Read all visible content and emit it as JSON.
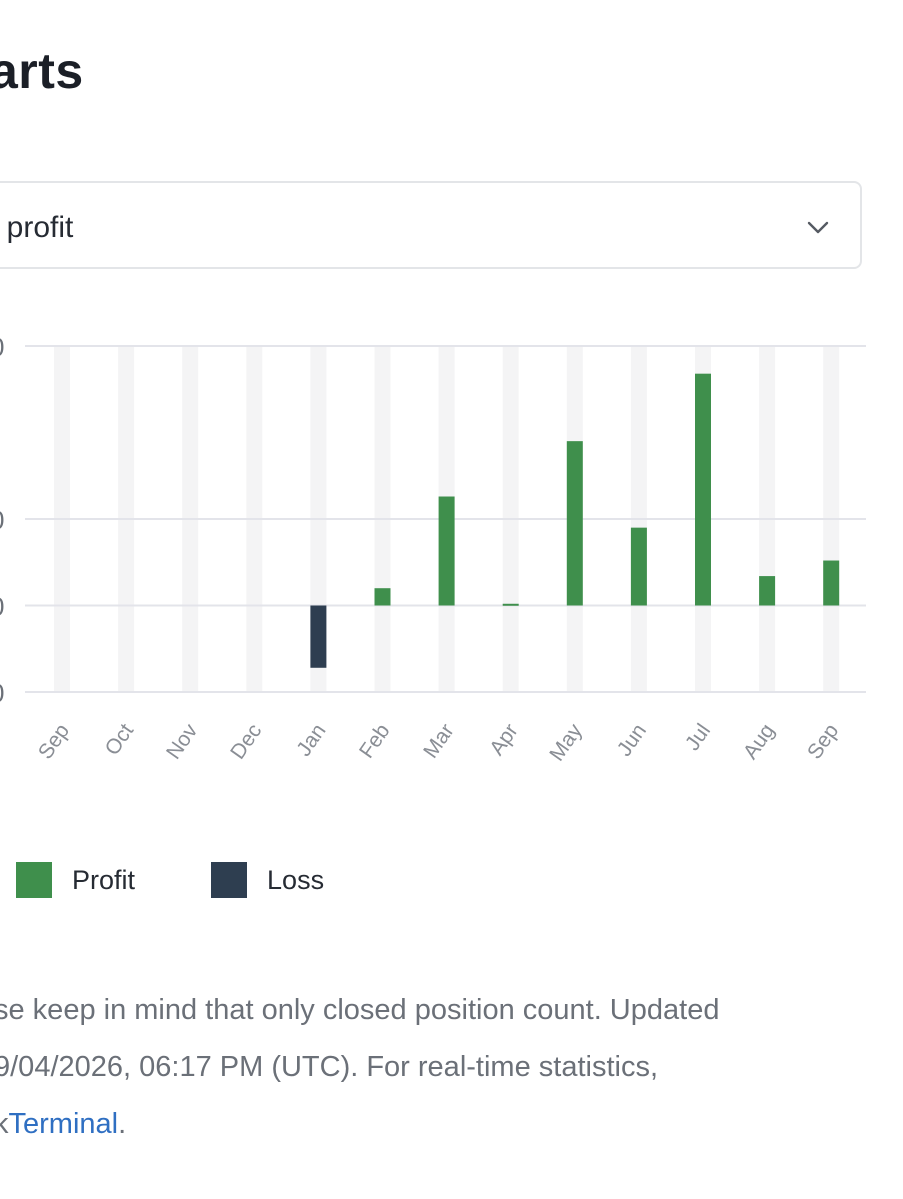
{
  "page": {
    "title": "arts"
  },
  "select": {
    "value": "t profit",
    "icon": "chevron-down-icon"
  },
  "chart_data": {
    "type": "bar",
    "categories": [
      "Sep",
      "Oct",
      "Nov",
      "Dec",
      "Jan",
      "Feb",
      "Mar",
      "Apr",
      "May",
      "Jun",
      "Jul",
      "Aug",
      "Sep"
    ],
    "series": [
      {
        "name": "Profit",
        "color": "#3f8f4c",
        "values": [
          0,
          0,
          0,
          0,
          0,
          10,
          63,
          1,
          95,
          45,
          134,
          17,
          26
        ]
      },
      {
        "name": "Loss",
        "color": "#2e3e50",
        "values": [
          0,
          0,
          0,
          0,
          -36,
          0,
          0,
          0,
          0,
          0,
          0,
          0,
          0
        ]
      }
    ],
    "ylim": [
      -50,
      150
    ],
    "gridlines": [
      -50,
      0,
      50,
      150
    ],
    "tick_labels": [
      "0",
      "0",
      "0",
      "0"
    ],
    "xlabel": "",
    "ylabel": "",
    "legend": "bottom-left"
  },
  "legend": {
    "items": [
      {
        "label": "Profit",
        "color": "#3f8f4c"
      },
      {
        "label": "Loss",
        "color": "#2e3e50"
      }
    ]
  },
  "note": {
    "line1": "se keep in mind that only closed position count. Updated",
    "line2": "9/04/2026, 06:17 PM (UTC). For real-time statistics,",
    "line3_prefix": "k",
    "link": "Terminal",
    "line3_suffix": "."
  }
}
